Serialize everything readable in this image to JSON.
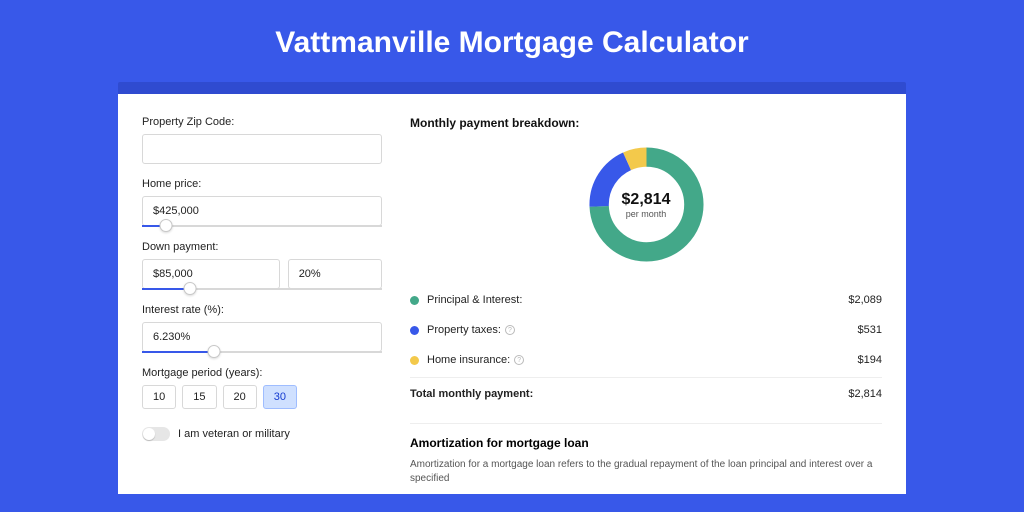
{
  "page": {
    "title": "Vattmanville Mortgage Calculator",
    "bg_color": "#3858e9",
    "card_shadow_color": "#2f4bd0"
  },
  "form": {
    "zip_label": "Property Zip Code:",
    "zip_value": "",
    "price_label": "Home price:",
    "price_value": "$425,000",
    "price_slider_pct": 10,
    "down_label": "Down payment:",
    "down_value": "$85,000",
    "down_pct_value": "20%",
    "down_slider_pct": 20,
    "rate_label": "Interest rate (%):",
    "rate_value": "6.230%",
    "rate_slider_pct": 30,
    "period_label": "Mortgage period (years):",
    "periods": [
      "10",
      "15",
      "20",
      "30"
    ],
    "period_active_index": 3,
    "veteran_label": "I am veteran or military",
    "veteran_on": false
  },
  "breakdown": {
    "title": "Monthly payment breakdown:",
    "total_center": "$2,814",
    "total_center_sub": "per month",
    "donut": {
      "segments": [
        {
          "key": "principal",
          "value": 2089,
          "color": "#43a889"
        },
        {
          "key": "taxes",
          "value": 531,
          "color": "#3858e9"
        },
        {
          "key": "insurance",
          "value": 194,
          "color": "#f3c94b"
        }
      ],
      "stroke_width": 14
    },
    "legend": [
      {
        "label": "Principal & Interest:",
        "value": "$2,089",
        "color": "#43a889",
        "info": false
      },
      {
        "label": "Property taxes:",
        "value": "$531",
        "color": "#3858e9",
        "info": true
      },
      {
        "label": "Home insurance:",
        "value": "$194",
        "color": "#f3c94b",
        "info": true
      }
    ],
    "total_row_label": "Total monthly payment:",
    "total_row_value": "$2,814"
  },
  "amortization": {
    "title": "Amortization for mortgage loan",
    "text": "Amortization for a mortgage loan refers to the gradual repayment of the loan principal and interest over a specified"
  }
}
